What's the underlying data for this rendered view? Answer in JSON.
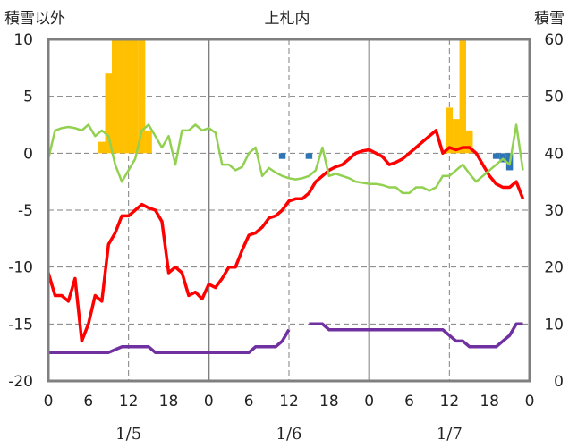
{
  "chart_data": {
    "type": "combo",
    "title": "上札内",
    "left_axis": {
      "label": "積雪以外",
      "range": [
        -20,
        10
      ],
      "ticks": [
        "10",
        "5",
        "0",
        "-5",
        "-10",
        "-15",
        "-20"
      ]
    },
    "right_axis": {
      "label": "積雪",
      "range": [
        0,
        60
      ],
      "ticks": [
        "60",
        "50",
        "40",
        "30",
        "20",
        "10",
        "0"
      ]
    },
    "x_axis": {
      "range": [
        0,
        72
      ],
      "hour_labels": [
        "0",
        "6",
        "12",
        "18",
        "0",
        "6",
        "12",
        "18",
        "0",
        "6",
        "12",
        "18",
        "0"
      ],
      "date_labels": [
        {
          "text": "1/5",
          "hour": 12
        },
        {
          "text": "1/6",
          "hour": 36
        },
        {
          "text": "1/7",
          "hour": 60
        }
      ],
      "day_boundaries": [
        24,
        48
      ],
      "dashed_gridlines": [
        12,
        36,
        60
      ]
    },
    "grid": true,
    "orange_bars": {
      "axis": "left",
      "color": "#FFC000",
      "x": [
        8,
        9,
        10,
        11,
        12,
        13,
        14,
        15,
        60,
        61,
        62,
        63,
        64
      ],
      "values": [
        1,
        7,
        10,
        10,
        10,
        10,
        10,
        2,
        4,
        3,
        10,
        2,
        0
      ]
    },
    "blue_bars": {
      "axis": "left",
      "color": "#2E75B6",
      "x": [
        35,
        39,
        67,
        68,
        69
      ],
      "values": [
        -0.5,
        -0.5,
        -0.5,
        -0.8,
        -1.5
      ]
    },
    "series": [
      {
        "color": "#FF0000",
        "axis": "left",
        "x": [
          0,
          1,
          2,
          3,
          4,
          5,
          6,
          7,
          8,
          9,
          10,
          11,
          12,
          13,
          14,
          15,
          16,
          17,
          18,
          19,
          20,
          21,
          22,
          23,
          24,
          25,
          26,
          27,
          28,
          29,
          30,
          31,
          32,
          33,
          34,
          35,
          36,
          37,
          38,
          39,
          40,
          41,
          42,
          43,
          44,
          45,
          46,
          47,
          48,
          49,
          50,
          51,
          52,
          53,
          54,
          55,
          56,
          57,
          58,
          59,
          60,
          61,
          62,
          63,
          64,
          65,
          66,
          67,
          68,
          69,
          70,
          71
        ],
        "values": [
          -10.5,
          -12.5,
          -12.5,
          -13,
          -11,
          -16.5,
          -15,
          -12.5,
          -13,
          -8,
          -7,
          -5.5,
          -5.5,
          -5,
          -4.5,
          -4.8,
          -5,
          -6,
          -10.5,
          -10,
          -10.5,
          -12.5,
          -12.2,
          -12.8,
          -11.5,
          -11.8,
          -11,
          -10,
          -10,
          -8.5,
          -7.2,
          -7,
          -6.5,
          -5.7,
          -5.5,
          -5,
          -4.2,
          -4,
          -4,
          -3.5,
          -2.5,
          -2,
          -1.5,
          -1.2,
          -1,
          -0.5,
          0,
          0.2,
          0.3,
          0,
          -0.3,
          -1,
          -0.8,
          -0.5,
          0,
          0.5,
          1,
          1.5,
          2,
          0,
          0.5,
          0.3,
          0.5,
          0.5,
          0,
          -1,
          -2,
          -2.7,
          -3,
          -3,
          -2.5,
          -4
        ]
      },
      {
        "color": "#92D050",
        "axis": "left",
        "x": [
          0,
          1,
          2,
          3,
          4,
          5,
          6,
          7,
          8,
          9,
          10,
          11,
          12,
          13,
          14,
          15,
          16,
          17,
          18,
          19,
          20,
          21,
          22,
          23,
          24,
          25,
          26,
          27,
          28,
          29,
          30,
          31,
          32,
          33,
          34,
          35,
          36,
          37,
          38,
          39,
          40,
          41,
          42,
          43,
          44,
          45,
          46,
          47,
          48,
          49,
          50,
          51,
          52,
          53,
          54,
          55,
          56,
          57,
          58,
          59,
          60,
          61,
          62,
          63,
          64,
          65,
          66,
          67,
          68,
          69,
          70,
          71
        ],
        "values": [
          -0.5,
          2,
          2.2,
          2.3,
          2.2,
          2,
          2.5,
          1.5,
          2,
          1.5,
          -1,
          -2.5,
          -1.5,
          -0.5,
          2,
          2.5,
          1.5,
          0.5,
          1.5,
          -1,
          2,
          2,
          2.5,
          2,
          2.2,
          1.8,
          -1,
          -1,
          -1.5,
          -1.2,
          0,
          0.5,
          -2,
          -1.3,
          -1.7,
          -2,
          -2.2,
          -2.3,
          -2.2,
          -2,
          -1.5,
          0.5,
          -2,
          -1.8,
          -2,
          -2.2,
          -2.5,
          -2.6,
          -2.7,
          -2.7,
          -2.8,
          -3,
          -3,
          -3.5,
          -3.5,
          -3,
          -3,
          -3.3,
          -3,
          -2,
          -2,
          -1.5,
          -1,
          -1.8,
          -2.5,
          -2,
          -1.5,
          -1,
          -0.5,
          -1,
          2.5,
          -1.5
        ]
      },
      {
        "color": "#7030A0",
        "axis": "right",
        "x": [
          0,
          8,
          9,
          10,
          11,
          12,
          13,
          14,
          15,
          16,
          17,
          18,
          19,
          20,
          21,
          22,
          23,
          24,
          25,
          26,
          27,
          28,
          29,
          30,
          31,
          32,
          33,
          34,
          35,
          36,
          null,
          39,
          40,
          41,
          42,
          43,
          44,
          45,
          46,
          47,
          48,
          49,
          50,
          51,
          52,
          53,
          54,
          55,
          56,
          57,
          58,
          59,
          60,
          61,
          62,
          63,
          64,
          65,
          66,
          67,
          68,
          69,
          70,
          71
        ],
        "values": [
          5,
          5,
          5,
          5.5,
          6,
          6,
          6,
          6,
          6,
          5,
          5,
          5,
          5,
          5,
          5,
          5,
          5,
          5,
          5,
          5,
          5,
          5,
          5,
          5,
          6,
          6,
          6,
          6,
          7,
          9,
          null,
          10,
          10,
          10,
          9,
          9,
          9,
          9,
          9,
          9,
          9,
          9,
          9,
          9,
          9,
          9,
          9,
          9,
          9,
          9,
          9,
          9,
          8,
          7,
          7,
          6,
          6,
          6,
          6,
          6,
          7,
          8,
          10,
          10
        ]
      }
    ]
  }
}
